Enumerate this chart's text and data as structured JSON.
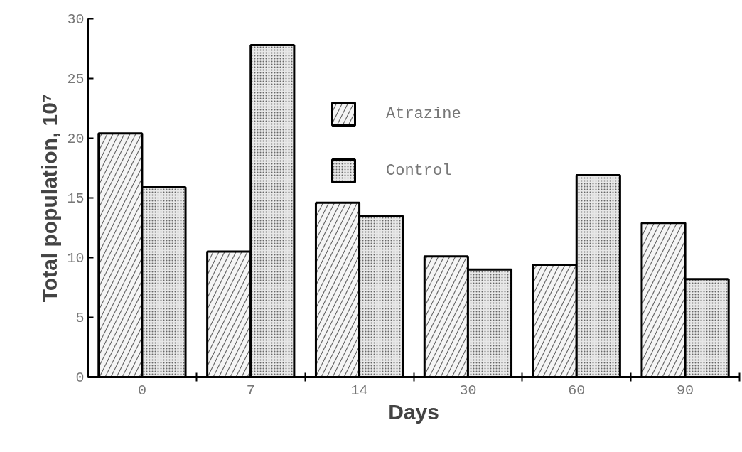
{
  "chart_data": {
    "type": "bar",
    "xlabel": "Days",
    "ylabel": "Total population, 10⁷",
    "categories": [
      "0",
      "7",
      "14",
      "30",
      "60",
      "90"
    ],
    "series": [
      {
        "name": "Atrazine",
        "color": "#f5f5f5",
        "values": [
          20.4,
          10.5,
          14.6,
          10.1,
          9.4,
          12.9
        ]
      },
      {
        "name": "Control",
        "color": "#e8e8e8",
        "values": [
          15.9,
          27.8,
          13.5,
          9.0,
          16.9,
          8.2
        ]
      }
    ],
    "ylim": [
      0,
      30
    ],
    "yticks": [
      0,
      5,
      10,
      15,
      20,
      25,
      30
    ],
    "grid": false,
    "legend": "top right"
  }
}
